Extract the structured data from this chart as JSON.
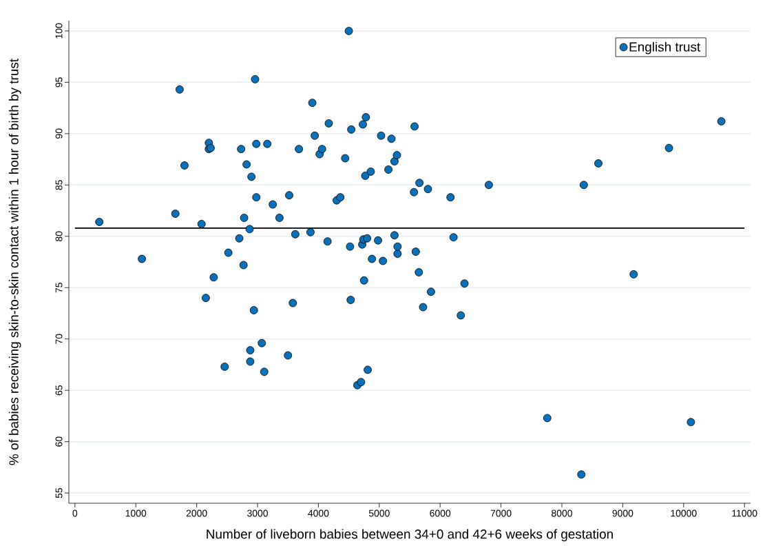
{
  "chart_data": {
    "type": "scatter",
    "xlabel": "Number of liveborn babies between 34+0 and 42+6 weeks of gestation",
    "ylabel": "% of babies receiving skin-to-skin contact within 1 hour of birth by trust",
    "xlim": [
      -100,
      11100
    ],
    "ylim": [
      54,
      101
    ],
    "xticks": [
      0,
      1000,
      2000,
      3000,
      4000,
      5000,
      6000,
      7000,
      8000,
      9000,
      10000,
      11000
    ],
    "yticks": [
      55,
      60,
      65,
      70,
      75,
      80,
      85,
      90,
      95,
      100
    ],
    "grid": "y",
    "legend": "top right",
    "marker": "circle",
    "ref_lines": [
      {
        "axis": "y",
        "value": 80.8,
        "color": "#000000"
      }
    ],
    "series": [
      {
        "name": "English trust",
        "color": "#0a70b8",
        "x": [
          400,
          1100,
          1650,
          1720,
          1800,
          2080,
          2150,
          2200,
          2200,
          2230,
          2280,
          2460,
          2520,
          2700,
          2730,
          2770,
          2780,
          2820,
          2870,
          2880,
          2880,
          2900,
          2940,
          2960,
          2980,
          2980,
          3070,
          3110,
          3160,
          3250,
          3360,
          3500,
          3520,
          3580,
          3620,
          3680,
          3870,
          3900,
          3940,
          4020,
          4060,
          4150,
          4170,
          4300,
          4360,
          4440,
          4500,
          4520,
          4530,
          4540,
          4640,
          4700,
          4720,
          4730,
          4740,
          4750,
          4770,
          4780,
          4800,
          4810,
          4860,
          4880,
          4980,
          5030,
          5060,
          5150,
          5200,
          5250,
          5250,
          5290,
          5300,
          5300,
          5570,
          5580,
          5600,
          5650,
          5660,
          5720,
          5800,
          5850,
          6170,
          6220,
          6340,
          6400,
          6800,
          7760,
          8320,
          8360,
          8600,
          9180,
          9760,
          10120,
          10620
        ],
        "values": [
          81.4,
          77.8,
          82.2,
          94.3,
          86.9,
          81.2,
          74.0,
          89.1,
          88.5,
          88.6,
          76.0,
          67.3,
          78.4,
          79.8,
          88.5,
          77.2,
          81.8,
          87.0,
          80.7,
          67.8,
          68.9,
          85.8,
          72.8,
          95.3,
          83.8,
          89.0,
          69.6,
          66.8,
          89.0,
          83.1,
          81.8,
          68.4,
          84.0,
          73.5,
          80.2,
          88.5,
          80.4,
          93.0,
          89.8,
          88.0,
          88.5,
          79.5,
          91.0,
          83.5,
          83.8,
          87.6,
          100,
          79.0,
          73.8,
          90.4,
          65.5,
          65.8,
          79.2,
          90.9,
          79.7,
          75.7,
          85.9,
          91.6,
          79.8,
          67.0,
          86.3,
          77.8,
          79.6,
          89.8,
          77.6,
          86.5,
          89.5,
          87.3,
          80.1,
          87.9,
          78.3,
          79.0,
          84.3,
          90.7,
          78.5,
          76.5,
          85.2,
          73.1,
          84.6,
          74.6,
          83.8,
          79.9,
          72.3,
          75.4,
          85.0,
          62.3,
          56.8,
          85.0,
          87.1,
          76.3,
          88.6,
          61.9,
          91.2
        ]
      }
    ]
  }
}
